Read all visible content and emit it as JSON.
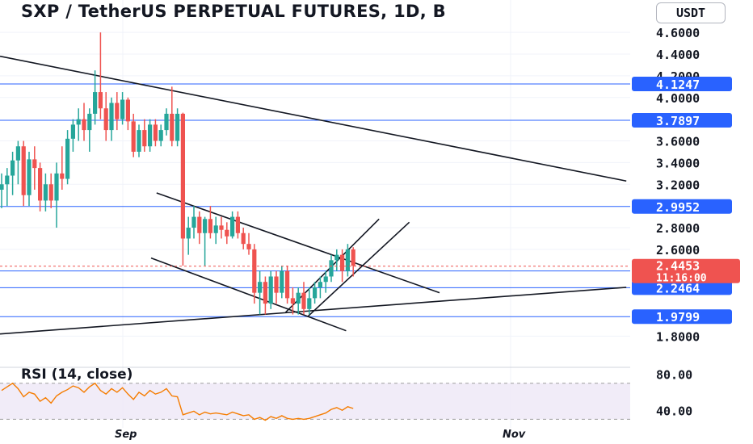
{
  "header": {
    "title": "SXP / TetherUS PERPETUAL FUTURES, 1D, B",
    "quote_currency": "USDT"
  },
  "rsi_panel": {
    "title": "RSI (14, close)"
  },
  "colors": {
    "up": "#26a69a",
    "down": "#ef5350",
    "level": "#2962ff",
    "trend": "#131722",
    "rsi": "#f57c00",
    "rsi_band": "#ede7f6"
  },
  "chart_data": [
    {
      "type": "candlestick",
      "title": "SXP / TetherUS PERPETUAL FUTURES, 1D, B",
      "ylim": [
        1.55,
        4.75
      ],
      "y_ticks": [
        4.6,
        4.4,
        4.2,
        4.0,
        3.6,
        3.4,
        3.2,
        2.8,
        2.6,
        1.8
      ],
      "y_tick_labels": [
        "4.6000",
        "4.4000",
        "4.2000",
        "4.0000",
        "3.6000",
        "3.4000",
        "3.2000",
        "2.8000",
        "2.6000",
        "1.8000"
      ],
      "x_labels": [
        "Sep",
        "Nov"
      ],
      "horizontal_levels": [
        4.1247,
        3.7897,
        2.9952,
        2.4016,
        2.2464,
        1.9799
      ],
      "level_labels": [
        "4.1247",
        "3.7897",
        "2.9952",
        "2.4016",
        "2.2464",
        "1.9799"
      ],
      "last_price": 2.4453,
      "last_price_label": "2.4453",
      "countdown": "11:16:00",
      "candles": [
        {
          "o": 3.15,
          "h": 3.3,
          "l": 2.98,
          "c": 3.2
        },
        {
          "o": 3.2,
          "h": 3.35,
          "l": 3.0,
          "c": 3.28
        },
        {
          "o": 3.28,
          "h": 3.5,
          "l": 3.1,
          "c": 3.42
        },
        {
          "o": 3.42,
          "h": 3.6,
          "l": 3.2,
          "c": 3.55
        },
        {
          "o": 3.55,
          "h": 3.6,
          "l": 3.0,
          "c": 3.1
        },
        {
          "o": 3.1,
          "h": 3.5,
          "l": 3.0,
          "c": 3.43
        },
        {
          "o": 3.43,
          "h": 3.55,
          "l": 3.15,
          "c": 3.35
        },
        {
          "o": 3.35,
          "h": 3.4,
          "l": 2.95,
          "c": 3.05
        },
        {
          "o": 3.05,
          "h": 3.3,
          "l": 2.95,
          "c": 3.2
        },
        {
          "o": 3.2,
          "h": 3.3,
          "l": 2.98,
          "c": 3.05
        },
        {
          "o": 3.05,
          "h": 3.4,
          "l": 2.8,
          "c": 3.3
        },
        {
          "o": 3.3,
          "h": 3.55,
          "l": 3.15,
          "c": 3.25
        },
        {
          "o": 3.25,
          "h": 3.7,
          "l": 3.2,
          "c": 3.62
        },
        {
          "o": 3.62,
          "h": 3.8,
          "l": 3.5,
          "c": 3.75
        },
        {
          "o": 3.75,
          "h": 3.9,
          "l": 3.6,
          "c": 3.8
        },
        {
          "o": 3.8,
          "h": 3.95,
          "l": 3.6,
          "c": 3.7
        },
        {
          "o": 3.7,
          "h": 3.9,
          "l": 3.5,
          "c": 3.85
        },
        {
          "o": 3.85,
          "h": 4.25,
          "l": 3.75,
          "c": 4.05
        },
        {
          "o": 4.05,
          "h": 4.6,
          "l": 3.8,
          "c": 3.9
        },
        {
          "o": 3.9,
          "h": 4.05,
          "l": 3.6,
          "c": 3.7
        },
        {
          "o": 3.7,
          "h": 4.0,
          "l": 3.6,
          "c": 3.95
        },
        {
          "o": 3.95,
          "h": 4.05,
          "l": 3.7,
          "c": 3.8
        },
        {
          "o": 3.8,
          "h": 4.05,
          "l": 3.75,
          "c": 3.98
        },
        {
          "o": 3.98,
          "h": 4.0,
          "l": 3.7,
          "c": 3.78
        },
        {
          "o": 3.78,
          "h": 3.85,
          "l": 3.45,
          "c": 3.5
        },
        {
          "o": 3.5,
          "h": 3.75,
          "l": 3.45,
          "c": 3.7
        },
        {
          "o": 3.7,
          "h": 3.8,
          "l": 3.5,
          "c": 3.55
        },
        {
          "o": 3.55,
          "h": 3.8,
          "l": 3.5,
          "c": 3.75
        },
        {
          "o": 3.75,
          "h": 3.8,
          "l": 3.55,
          "c": 3.6
        },
        {
          "o": 3.6,
          "h": 3.75,
          "l": 3.55,
          "c": 3.7
        },
        {
          "o": 3.7,
          "h": 3.9,
          "l": 3.65,
          "c": 3.85
        },
        {
          "o": 3.85,
          "h": 4.1,
          "l": 3.55,
          "c": 3.6
        },
        {
          "o": 3.6,
          "h": 3.9,
          "l": 3.55,
          "c": 3.85
        },
        {
          "o": 3.85,
          "h": 3.86,
          "l": 2.45,
          "c": 2.7
        },
        {
          "o": 2.7,
          "h": 2.9,
          "l": 2.55,
          "c": 2.8
        },
        {
          "o": 2.8,
          "h": 3.0,
          "l": 2.7,
          "c": 2.9
        },
        {
          "o": 2.9,
          "h": 2.95,
          "l": 2.65,
          "c": 2.75
        },
        {
          "o": 2.75,
          "h": 2.9,
          "l": 2.45,
          "c": 2.88
        },
        {
          "o": 2.88,
          "h": 3.0,
          "l": 2.7,
          "c": 2.75
        },
        {
          "o": 2.75,
          "h": 2.9,
          "l": 2.65,
          "c": 2.82
        },
        {
          "o": 2.82,
          "h": 2.9,
          "l": 2.7,
          "c": 2.78
        },
        {
          "o": 2.78,
          "h": 2.85,
          "l": 2.65,
          "c": 2.72
        },
        {
          "o": 2.72,
          "h": 2.95,
          "l": 2.7,
          "c": 2.9
        },
        {
          "o": 2.9,
          "h": 2.95,
          "l": 2.7,
          "c": 2.75
        },
        {
          "o": 2.75,
          "h": 2.8,
          "l": 2.6,
          "c": 2.65
        },
        {
          "o": 2.65,
          "h": 2.75,
          "l": 2.55,
          "c": 2.6
        },
        {
          "o": 2.6,
          "h": 2.65,
          "l": 2.1,
          "c": 2.2
        },
        {
          "o": 2.2,
          "h": 2.4,
          "l": 2.0,
          "c": 2.3
        },
        {
          "o": 2.3,
          "h": 2.35,
          "l": 2.0,
          "c": 2.1
        },
        {
          "o": 2.1,
          "h": 2.4,
          "l": 2.05,
          "c": 2.35
        },
        {
          "o": 2.35,
          "h": 2.4,
          "l": 2.1,
          "c": 2.2
        },
        {
          "o": 2.2,
          "h": 2.45,
          "l": 2.15,
          "c": 2.4
        },
        {
          "o": 2.4,
          "h": 2.45,
          "l": 2.1,
          "c": 2.15
        },
        {
          "o": 2.15,
          "h": 2.25,
          "l": 2.0,
          "c": 2.1
        },
        {
          "o": 2.1,
          "h": 2.25,
          "l": 2.0,
          "c": 2.2
        },
        {
          "o": 2.2,
          "h": 2.3,
          "l": 2.0,
          "c": 2.05
        },
        {
          "o": 2.05,
          "h": 2.25,
          "l": 2.0,
          "c": 2.15
        },
        {
          "o": 2.15,
          "h": 2.3,
          "l": 2.1,
          "c": 2.25
        },
        {
          "o": 2.25,
          "h": 2.35,
          "l": 2.15,
          "c": 2.3
        },
        {
          "o": 2.3,
          "h": 2.4,
          "l": 2.2,
          "c": 2.35
        },
        {
          "o": 2.35,
          "h": 2.55,
          "l": 2.3,
          "c": 2.5
        },
        {
          "o": 2.5,
          "h": 2.6,
          "l": 2.4,
          "c": 2.55
        },
        {
          "o": 2.55,
          "h": 2.6,
          "l": 2.3,
          "c": 2.4
        },
        {
          "o": 2.4,
          "h": 2.65,
          "l": 2.35,
          "c": 2.6
        },
        {
          "o": 2.6,
          "h": 2.62,
          "l": 2.35,
          "c": 2.45
        }
      ]
    },
    {
      "type": "line",
      "name": "RSI (14, close)",
      "ylim": [
        25,
        85
      ],
      "y_ticks": [
        80,
        40
      ],
      "y_tick_labels": [
        "80.00",
        "40.00"
      ],
      "band": [
        30,
        70
      ],
      "values": [
        62,
        66,
        70,
        64,
        55,
        60,
        58,
        50,
        54,
        48,
        56,
        60,
        63,
        67,
        65,
        60,
        66,
        70,
        62,
        58,
        64,
        60,
        65,
        58,
        52,
        60,
        56,
        62,
        58,
        60,
        64,
        56,
        55,
        35,
        37,
        39,
        35,
        38,
        36,
        37,
        36,
        35,
        38,
        36,
        34,
        35,
        30,
        32,
        29,
        33,
        31,
        34,
        31,
        30,
        31,
        30,
        31,
        33,
        35,
        37,
        41,
        43,
        40,
        44,
        42
      ]
    }
  ]
}
